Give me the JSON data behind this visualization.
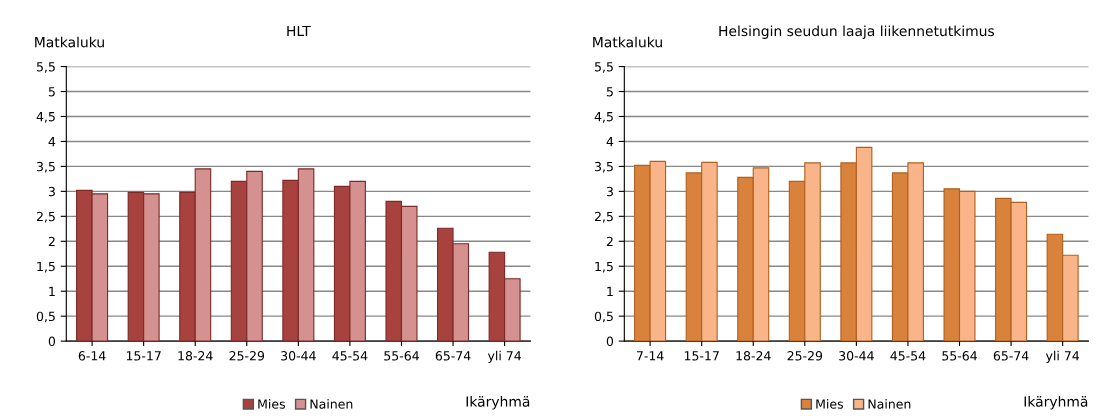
{
  "chart_data": [
    {
      "type": "bar",
      "title": "HLT",
      "ylabel": "Matkaluku",
      "xlabel": "Ikäryhmä",
      "categories": [
        "6-14",
        "15-17",
        "18-24",
        "25-29",
        "30-44",
        "45-54",
        "55-64",
        "65-74",
        "yli 74"
      ],
      "series": [
        {
          "name": "Mies",
          "color": "#a8423f",
          "values": [
            3.02,
            2.98,
            2.98,
            3.2,
            3.22,
            3.1,
            2.8,
            2.26,
            1.78
          ]
        },
        {
          "name": "Nainen",
          "color": "#d4918f",
          "values": [
            2.95,
            2.95,
            3.45,
            3.4,
            3.45,
            3.2,
            2.7,
            1.95,
            1.25
          ]
        }
      ],
      "ylim": [
        0,
        5.5
      ],
      "yticks": [
        0,
        {
          "value": 0.5,
          "label": "0,5"
        },
        1,
        {
          "value": 1.5,
          "label": "1,5"
        },
        2,
        {
          "value": 2.5,
          "label": "2,5"
        },
        3,
        {
          "value": 3.5,
          "label": "3,5"
        },
        4,
        {
          "value": 4.5,
          "label": "4,5"
        },
        5,
        {
          "value": 5.5,
          "label": "5,5"
        }
      ],
      "grid": "y",
      "legend": "bottom"
    },
    {
      "type": "bar",
      "title": "Helsingin seudun laaja liikennetutkimus",
      "ylabel": "Matkaluku",
      "xlabel": "Ikäryhmä",
      "categories": [
        "7-14",
        "15-17",
        "18-24",
        "25-29",
        "30-44",
        "45-54",
        "55-64",
        "65-74",
        "yli 74"
      ],
      "series": [
        {
          "name": "Mies",
          "color": "#d9823c",
          "values": [
            3.52,
            3.37,
            3.28,
            3.2,
            3.57,
            3.37,
            3.05,
            2.86,
            2.14
          ]
        },
        {
          "name": "Nainen",
          "color": "#f9b48a",
          "values": [
            3.6,
            3.58,
            3.47,
            3.57,
            3.88,
            3.57,
            3.0,
            2.78,
            1.72
          ]
        }
      ],
      "ylim": [
        0,
        5.5
      ],
      "yticks": [
        0,
        {
          "value": 0.5,
          "label": "0,5"
        },
        1,
        {
          "value": 1.5,
          "label": "1,5"
        },
        2,
        {
          "value": 2.5,
          "label": "2,5"
        },
        3,
        {
          "value": 3.5,
          "label": "3,5"
        },
        4,
        {
          "value": 4.5,
          "label": "4,5"
        },
        5,
        {
          "value": 5.5,
          "label": "5,5"
        }
      ],
      "grid": "y",
      "legend": "bottom"
    }
  ]
}
